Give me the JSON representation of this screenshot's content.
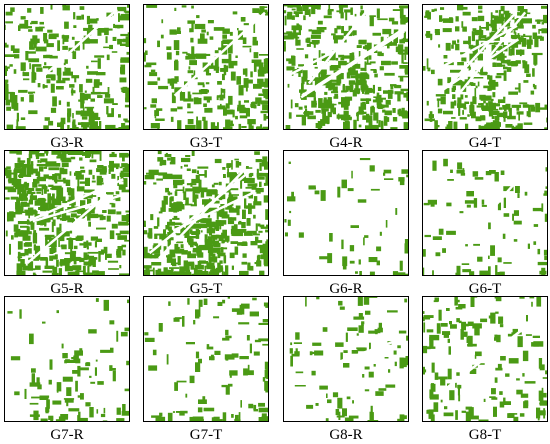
{
  "figure": {
    "panels": [
      {
        "label": "G3-R",
        "density": 0.3,
        "lines": 1,
        "seed": 301
      },
      {
        "label": "G3-T",
        "density": 0.26,
        "lines": 1,
        "seed": 302
      },
      {
        "label": "G4-R",
        "density": 0.44,
        "lines": 4,
        "seed": 401
      },
      {
        "label": "G4-T",
        "density": 0.4,
        "lines": 4,
        "seed": 402
      },
      {
        "label": "G5-R",
        "density": 0.52,
        "lines": 3,
        "seed": 501
      },
      {
        "label": "G5-T",
        "density": 0.48,
        "lines": 3,
        "seed": 502
      },
      {
        "label": "G6-R",
        "density": 0.06,
        "lines": 0,
        "seed": 601
      },
      {
        "label": "G6-T",
        "density": 0.09,
        "lines": 1,
        "seed": 602
      },
      {
        "label": "G7-R",
        "density": 0.1,
        "lines": 0,
        "seed": 701
      },
      {
        "label": "G7-T",
        "density": 0.12,
        "lines": 0,
        "seed": 702
      },
      {
        "label": "G8-R",
        "density": 0.1,
        "lines": 1,
        "seed": 801
      },
      {
        "label": "G8-T",
        "density": 0.16,
        "lines": 1,
        "seed": 802
      }
    ],
    "colors": {
      "vegetation": "#4a9a14",
      "background": "#ffffff",
      "border": "#000000"
    }
  }
}
